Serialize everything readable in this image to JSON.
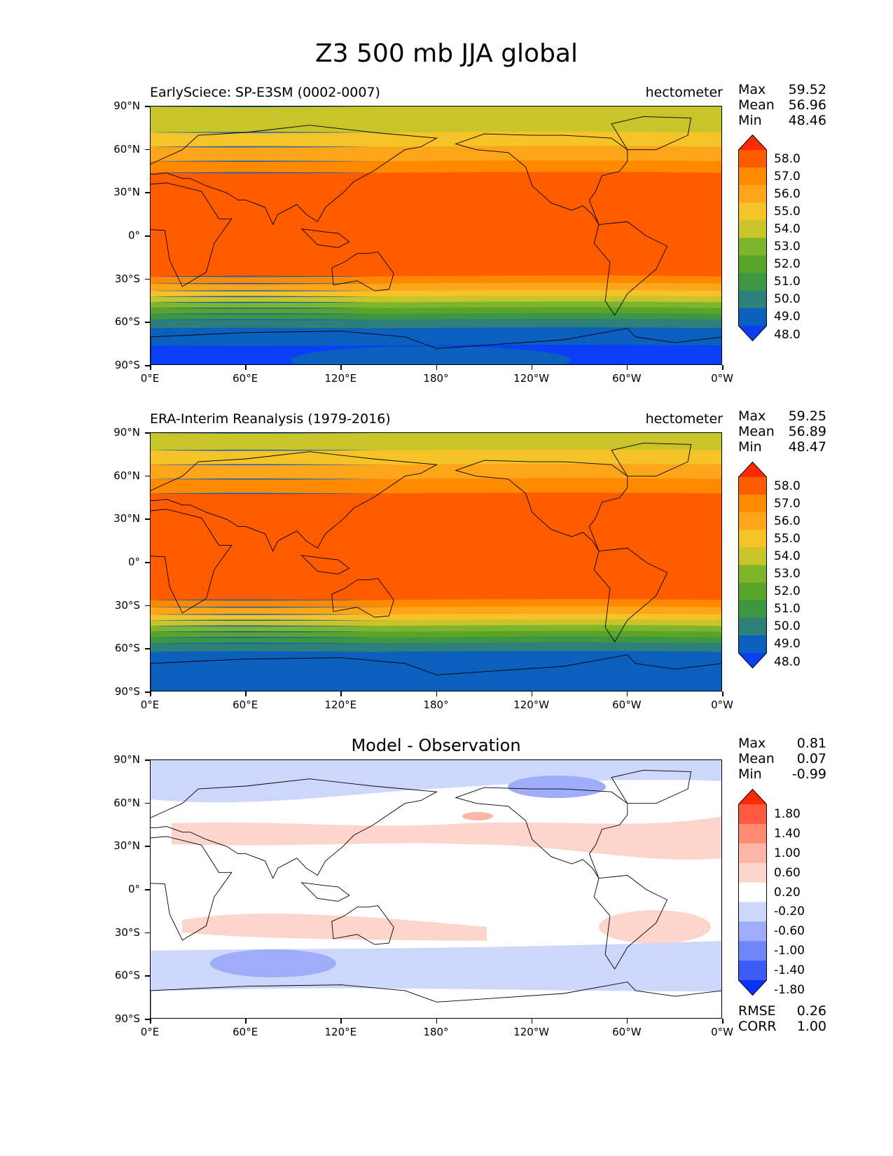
{
  "title": "Z3 500 mb JJA global",
  "chart_data": [
    {
      "type": "heatmap",
      "title": "EarlySciece: SP-E3SM (0002-0007)",
      "units": "hectometer",
      "stats": {
        "Max": "59.52",
        "Mean": "56.96",
        "Min": "48.46"
      },
      "x_ticks": [
        "0°E",
        "60°E",
        "120°E",
        "180°",
        "120°W",
        "60°W",
        "0°W"
      ],
      "y_ticks": [
        "90°N",
        "60°N",
        "30°N",
        "0°",
        "30°S",
        "60°S",
        "90°S"
      ],
      "colorbar": {
        "levels": [
          "58.0",
          "57.0",
          "56.0",
          "55.0",
          "54.0",
          "53.0",
          "52.0",
          "51.0",
          "50.0",
          "49.0",
          "48.0"
        ],
        "colors": [
          "#ff2a00",
          "#ff5c00",
          "#ff8a00",
          "#ffa51a",
          "#f5c328",
          "#c8c52a",
          "#7fb52b",
          "#5aa42a",
          "#3d9641",
          "#2e7f7a",
          "#0b5fbd",
          "#0a3ff5"
        ]
      },
      "latitude_profile": [
        {
          "lat": 90,
          "band": 4
        },
        {
          "lat": 72,
          "band": 3
        },
        {
          "lat": 62,
          "band": 2
        },
        {
          "lat": 52,
          "band": 1
        },
        {
          "lat": 44,
          "band": 0
        },
        {
          "lat": -28,
          "band": 1
        },
        {
          "lat": -33,
          "band": 2
        },
        {
          "lat": -38,
          "band": 3
        },
        {
          "lat": -42,
          "band": 4
        },
        {
          "lat": -46,
          "band": 5
        },
        {
          "lat": -50,
          "band": 6
        },
        {
          "lat": -54,
          "band": 7
        },
        {
          "lat": -58,
          "band": 8
        },
        {
          "lat": -64,
          "band": 9
        },
        {
          "lat": -76,
          "band": 10
        }
      ]
    },
    {
      "type": "heatmap",
      "title": "ERA-Interim Reanalysis (1979-2016)",
      "units": "hectometer",
      "stats": {
        "Max": "59.25",
        "Mean": "56.89",
        "Min": "48.47"
      },
      "x_ticks": [
        "0°E",
        "60°E",
        "120°E",
        "180°",
        "120°W",
        "60°W",
        "0°W"
      ],
      "y_ticks": [
        "90°N",
        "60°N",
        "30°N",
        "0°",
        "30°S",
        "60°S",
        "90°S"
      ],
      "colorbar": {
        "levels": [
          "58.0",
          "57.0",
          "56.0",
          "55.0",
          "54.0",
          "53.0",
          "52.0",
          "51.0",
          "50.0",
          "49.0",
          "48.0"
        ],
        "colors": [
          "#ff2a00",
          "#ff5c00",
          "#ff8a00",
          "#ffa51a",
          "#f5c328",
          "#c8c52a",
          "#7fb52b",
          "#5aa42a",
          "#3d9641",
          "#2e7f7a",
          "#0b5fbd",
          "#0a3ff5"
        ]
      },
      "latitude_profile": [
        {
          "lat": 90,
          "band": 4
        },
        {
          "lat": 78,
          "band": 3
        },
        {
          "lat": 68,
          "band": 2
        },
        {
          "lat": 58,
          "band": 1
        },
        {
          "lat": 48,
          "band": 0
        },
        {
          "lat": -26,
          "band": 1
        },
        {
          "lat": -31,
          "band": 2
        },
        {
          "lat": -36,
          "band": 3
        },
        {
          "lat": -40,
          "band": 4
        },
        {
          "lat": -44,
          "band": 5
        },
        {
          "lat": -48,
          "band": 6
        },
        {
          "lat": -52,
          "band": 7
        },
        {
          "lat": -56,
          "band": 8
        },
        {
          "lat": -62,
          "band": 9
        }
      ]
    },
    {
      "type": "heatmap",
      "title": "Model - Observation",
      "stats": {
        "Max": "0.81",
        "Mean": "0.07",
        "Min": "-0.99"
      },
      "x_ticks": [
        "0°E",
        "60°E",
        "120°E",
        "180°",
        "120°W",
        "60°W",
        "0°W"
      ],
      "y_ticks": [
        "90°N",
        "60°N",
        "30°N",
        "0°",
        "30°S",
        "60°S",
        "90°S"
      ],
      "colorbar": {
        "levels": [
          "1.80",
          "1.40",
          "1.00",
          "0.60",
          "0.20",
          "-0.20",
          "-0.60",
          "-1.00",
          "-1.40",
          "-1.80"
        ],
        "colors": [
          "#ff2a00",
          "#ff5a40",
          "#ff8a70",
          "#ffb5a5",
          "#fdd5cc",
          "#ffffff",
          "#cdd6fb",
          "#9fadf8",
          "#6f86f8",
          "#3c5cf8",
          "#0a32ff"
        ]
      },
      "metrics": {
        "RMSE": "0.26",
        "CORR": "1.00"
      }
    }
  ]
}
